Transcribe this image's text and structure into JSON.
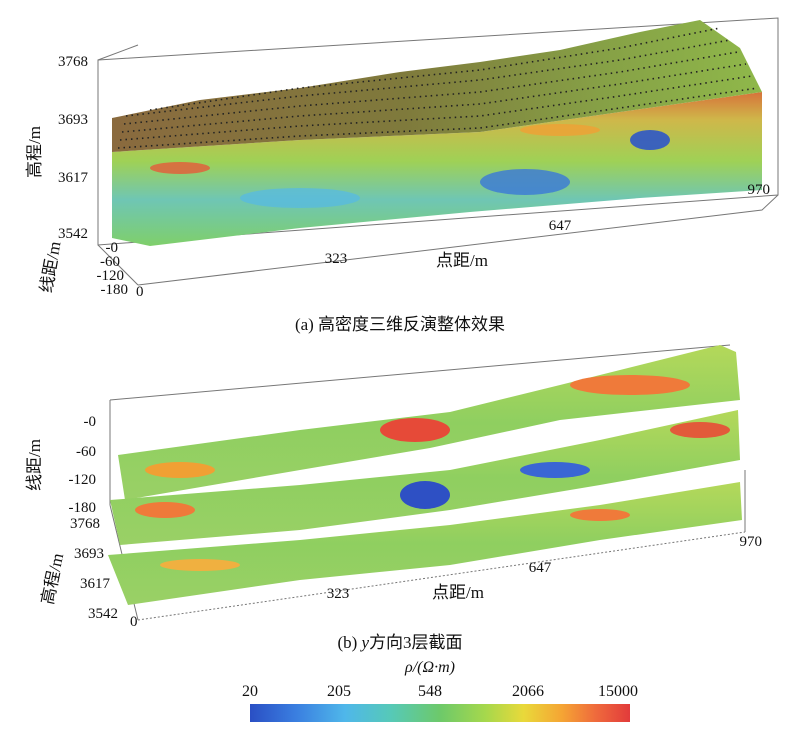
{
  "panel_a": {
    "caption": "(a) 高密度三维反演整体效果",
    "elevation_label": "高程/m",
    "elevation_ticks": [
      "3768",
      "3693",
      "3617",
      "3542"
    ],
    "line_label": "线距/m",
    "line_ticks": [
      "-0",
      "-60",
      "-120",
      "-180"
    ],
    "distance_label": "点距/m",
    "distance_ticks": [
      "0",
      "323",
      "647",
      "970"
    ]
  },
  "panel_b": {
    "caption_prefix": "(b) ",
    "caption_var": "y",
    "caption_rest": "方向3层截面",
    "line_label": "线距/m",
    "line_ticks": [
      "-0",
      "-60",
      "-120",
      "-180"
    ],
    "elevation_label": "高程/m",
    "elevation_ticks": [
      "3768",
      "3693",
      "3617",
      "3542"
    ],
    "distance_label": "点距/m",
    "distance_ticks": [
      "0",
      "323",
      "647",
      "970"
    ]
  },
  "colorbar": {
    "title": "ρ/(Ω·m)",
    "ticks": [
      "20",
      "205",
      "548",
      "2066",
      "15000"
    ],
    "colors": [
      "#2a4fc4",
      "#3a7ee0",
      "#4fb7ea",
      "#56c9b8",
      "#6dc96a",
      "#a6d84c",
      "#e9d93a",
      "#f5a534",
      "#ef6a3c",
      "#e23b3b"
    ]
  }
}
